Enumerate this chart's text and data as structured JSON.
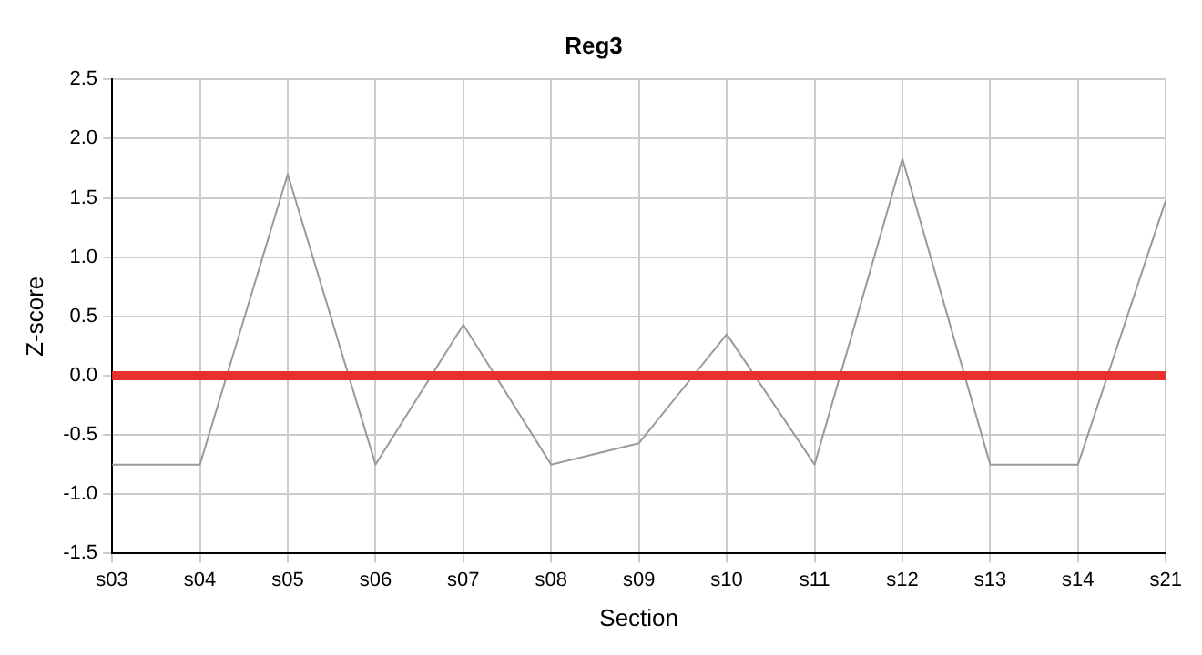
{
  "chart_data": {
    "type": "line",
    "title": "Reg3",
    "xlabel": "Section",
    "ylabel": "Z-score",
    "categories": [
      "s03",
      "s04",
      "s05",
      "s06",
      "s07",
      "s08",
      "s09",
      "s10",
      "s11",
      "s12",
      "s13",
      "s14",
      "s21"
    ],
    "series": [
      {
        "color": "#999999",
        "values": [
          -0.75,
          -0.75,
          1.7,
          -0.75,
          0.43,
          -0.75,
          -0.57,
          0.35,
          -0.75,
          1.83,
          -0.75,
          -0.75,
          1.48
        ]
      }
    ],
    "ylim": [
      -1.5,
      2.5
    ],
    "yticks": [
      {
        "value": -1.5,
        "label": "-1.5"
      },
      {
        "value": -1,
        "label": "-1.0"
      },
      {
        "value": -0.5,
        "label": "-0.5"
      },
      {
        "value": 0,
        "label": "0.0"
      },
      {
        "value": 0.5,
        "label": "0.5"
      },
      {
        "value": 1,
        "label": "1.0"
      },
      {
        "value": 1.5,
        "label": "1.5"
      },
      {
        "value": 2,
        "label": "2.0"
      },
      {
        "value": 2.5,
        "label": "2.5"
      }
    ],
    "ref_lines": [
      {
        "axis": "y",
        "value": 0,
        "color": "#e8302f"
      }
    ],
    "grid": true,
    "legend": false,
    "marker": "none",
    "line_style": "solid"
  }
}
